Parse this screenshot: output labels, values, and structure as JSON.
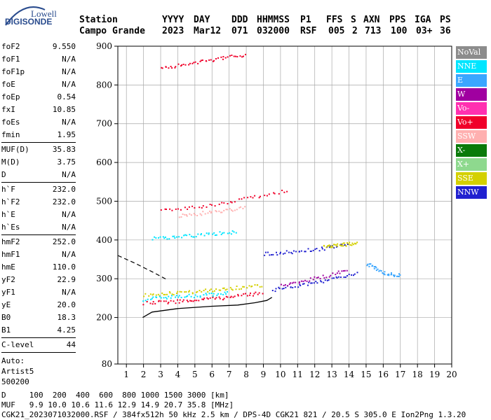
{
  "logo": {
    "line1": "Lowell",
    "line2": "DIGISONDE"
  },
  "header": {
    "labels": [
      "Station",
      "YYYY",
      "DAY",
      "DDD",
      "HHMMSS",
      "P1",
      "FFS",
      "S",
      "AXN",
      "PPS",
      "IGA",
      "PS"
    ],
    "values": [
      "Campo Grande",
      "2023",
      "Mar12",
      "071",
      "032000",
      "RSF",
      "005",
      "2",
      "713",
      "100",
      "03+",
      "36"
    ]
  },
  "params": {
    "group1": [
      {
        "name": "foF2",
        "value": "9.550"
      },
      {
        "name": "foF1",
        "value": "N/A"
      },
      {
        "name": "foF1p",
        "value": "N/A"
      },
      {
        "name": "foE",
        "value": "N/A"
      },
      {
        "name": "foEp",
        "value": "0.54"
      },
      {
        "name": "fxI",
        "value": "10.85"
      },
      {
        "name": "foEs",
        "value": "N/A"
      },
      {
        "name": "fmin",
        "value": "1.95"
      }
    ],
    "group2": [
      {
        "name": "MUF(D)",
        "value": "35.83"
      },
      {
        "name": "M(D)",
        "value": "3.75"
      },
      {
        "name": "D",
        "value": "N/A"
      }
    ],
    "group3": [
      {
        "name": "h`F",
        "value": "232.0"
      },
      {
        "name": "h`F2",
        "value": "232.0"
      },
      {
        "name": "h`E",
        "value": "N/A"
      },
      {
        "name": "h`Es",
        "value": "N/A"
      }
    ],
    "group4": [
      {
        "name": "hmF2",
        "value": "252.0"
      },
      {
        "name": "hmF1",
        "value": "N/A"
      },
      {
        "name": "hmE",
        "value": "110.0"
      },
      {
        "name": "yF2",
        "value": "22.9"
      },
      {
        "name": "yF1",
        "value": "N/A"
      },
      {
        "name": "yE",
        "value": "20.0"
      },
      {
        "name": "B0",
        "value": "18.3"
      },
      {
        "name": "B1",
        "value": "4.25"
      }
    ],
    "group5": [
      {
        "name": "C-level",
        "value": "44"
      }
    ],
    "auto": [
      "Auto:",
      "Artist5",
      "500200"
    ]
  },
  "legend": [
    {
      "label": "NoVal",
      "color": "#8c8c8c"
    },
    {
      "label": "NNE",
      "color": "#00e5ff"
    },
    {
      "label": "E",
      "color": "#3aa6ff"
    },
    {
      "label": "W",
      "color": "#a000a0"
    },
    {
      "label": "Vo-",
      "color": "#ff30b0"
    },
    {
      "label": "Vo+",
      "color": "#f0002a"
    },
    {
      "label": "SSW",
      "color": "#ffb0b0"
    },
    {
      "label": "X-",
      "color": "#0a7a0a"
    },
    {
      "label": "X+",
      "color": "#8ed98e"
    },
    {
      "label": "SSE",
      "color": "#d4d000"
    },
    {
      "label": "NNW",
      "color": "#2020d0"
    }
  ],
  "footer": {
    "d_line": "D     100  200  400  600  800 1000 1500 3000 [km]",
    "muf_line": "MUF   9.9 10.0 10.6 11.6 12.9 14.9 20.7 35.8 [MHz]",
    "info_line": "CGK21_2023071032000.RSF / 384fx512h 50 kHz 2.5 km / DPS-4D CGK21 821 / 20.5 S 305.0 E Ion2Png 1.3.20"
  },
  "chart_data": {
    "type": "scatter",
    "xlim": [
      0.5,
      20
    ],
    "ylim": [
      80,
      900
    ],
    "xticks": [
      1,
      2,
      3,
      4,
      5,
      6,
      7,
      8,
      9,
      10,
      11,
      12,
      13,
      14,
      15,
      16,
      17,
      18,
      19,
      20
    ],
    "yticks": [
      80,
      200,
      300,
      400,
      500,
      600,
      700,
      800,
      900
    ],
    "grid": true,
    "profile_curve": [
      [
        1.95,
        200
      ],
      [
        2.5,
        214
      ],
      [
        4,
        223
      ],
      [
        6,
        229
      ],
      [
        7.5,
        232
      ],
      [
        8.5,
        238
      ],
      [
        9.2,
        244
      ],
      [
        9.5,
        252
      ]
    ],
    "dashed_curve": [
      [
        0.5,
        360
      ],
      [
        1.5,
        340
      ],
      [
        2.5,
        318
      ],
      [
        3.4,
        297
      ]
    ],
    "traces": [
      {
        "name": "o_f2_low",
        "color": "#f0002a",
        "points": [
          [
            2,
            238
          ],
          [
            3,
            241
          ],
          [
            4,
            243
          ],
          [
            5,
            246
          ],
          [
            6,
            250
          ],
          [
            7,
            254
          ],
          [
            8,
            260
          ],
          [
            9,
            266
          ]
        ]
      },
      {
        "name": "o_f2_mid",
        "color": "#d4d000",
        "points": [
          [
            2,
            258
          ],
          [
            3,
            262
          ],
          [
            4,
            265
          ],
          [
            5,
            268
          ],
          [
            6,
            272
          ],
          [
            7,
            276
          ],
          [
            8,
            280
          ],
          [
            9,
            285
          ]
        ]
      },
      {
        "name": "cyan_low",
        "color": "#00e5ff",
        "points": [
          [
            2,
            248
          ],
          [
            3,
            252
          ],
          [
            4,
            255
          ],
          [
            5,
            258
          ],
          [
            6,
            261
          ],
          [
            7,
            265
          ]
        ]
      },
      {
        "name": "x_trace",
        "color": "#2020d0",
        "points": [
          [
            9.5,
            273
          ],
          [
            10.5,
            280
          ],
          [
            11.5,
            288
          ],
          [
            12.5,
            296
          ],
          [
            13.5,
            305
          ],
          [
            14.5,
            318
          ]
        ]
      },
      {
        "name": "x_trace2",
        "color": "#a000a0",
        "points": [
          [
            10,
            283
          ],
          [
            11,
            292
          ],
          [
            12,
            302
          ],
          [
            13,
            313
          ],
          [
            14,
            328
          ]
        ]
      },
      {
        "name": "multi_2hop",
        "color": "#f0002a",
        "points": [
          [
            3,
            478
          ],
          [
            4.5,
            484
          ],
          [
            6,
            492
          ],
          [
            7.5,
            505
          ],
          [
            9,
            518
          ],
          [
            10.5,
            530
          ]
        ]
      },
      {
        "name": "multi_2hop_b",
        "color": "#ffb0b0",
        "points": [
          [
            4,
            464
          ],
          [
            5,
            468
          ],
          [
            6,
            474
          ],
          [
            7,
            479
          ],
          [
            8,
            484
          ]
        ]
      },
      {
        "name": "cyan_mid",
        "color": "#00e5ff",
        "points": [
          [
            2.5,
            405
          ],
          [
            3.5,
            408
          ],
          [
            4.5,
            411
          ],
          [
            5.5,
            415
          ],
          [
            6.5,
            419
          ],
          [
            7.5,
            423
          ]
        ]
      },
      {
        "name": "blue_mid",
        "color": "#2020d0",
        "points": [
          [
            9,
            365
          ],
          [
            10,
            368
          ],
          [
            11,
            372
          ],
          [
            12,
            377
          ],
          [
            13,
            383
          ],
          [
            14,
            390
          ]
        ]
      },
      {
        "name": "yellow_mid",
        "color": "#d4d000",
        "points": [
          [
            12.5,
            385
          ],
          [
            13,
            387
          ],
          [
            13.5,
            389
          ],
          [
            14,
            391
          ],
          [
            14.5,
            395
          ]
        ]
      },
      {
        "name": "far_top",
        "color": "#f0002a",
        "points": [
          [
            3,
            845
          ],
          [
            4,
            852
          ],
          [
            5,
            858
          ],
          [
            6,
            866
          ],
          [
            7,
            873
          ],
          [
            8,
            880
          ]
        ]
      },
      {
        "name": "far_tail",
        "color": "#3aa6ff",
        "points": [
          [
            15,
            340
          ],
          [
            15.5,
            330
          ],
          [
            16,
            318
          ],
          [
            16.5,
            312
          ],
          [
            17,
            311
          ]
        ]
      }
    ]
  }
}
